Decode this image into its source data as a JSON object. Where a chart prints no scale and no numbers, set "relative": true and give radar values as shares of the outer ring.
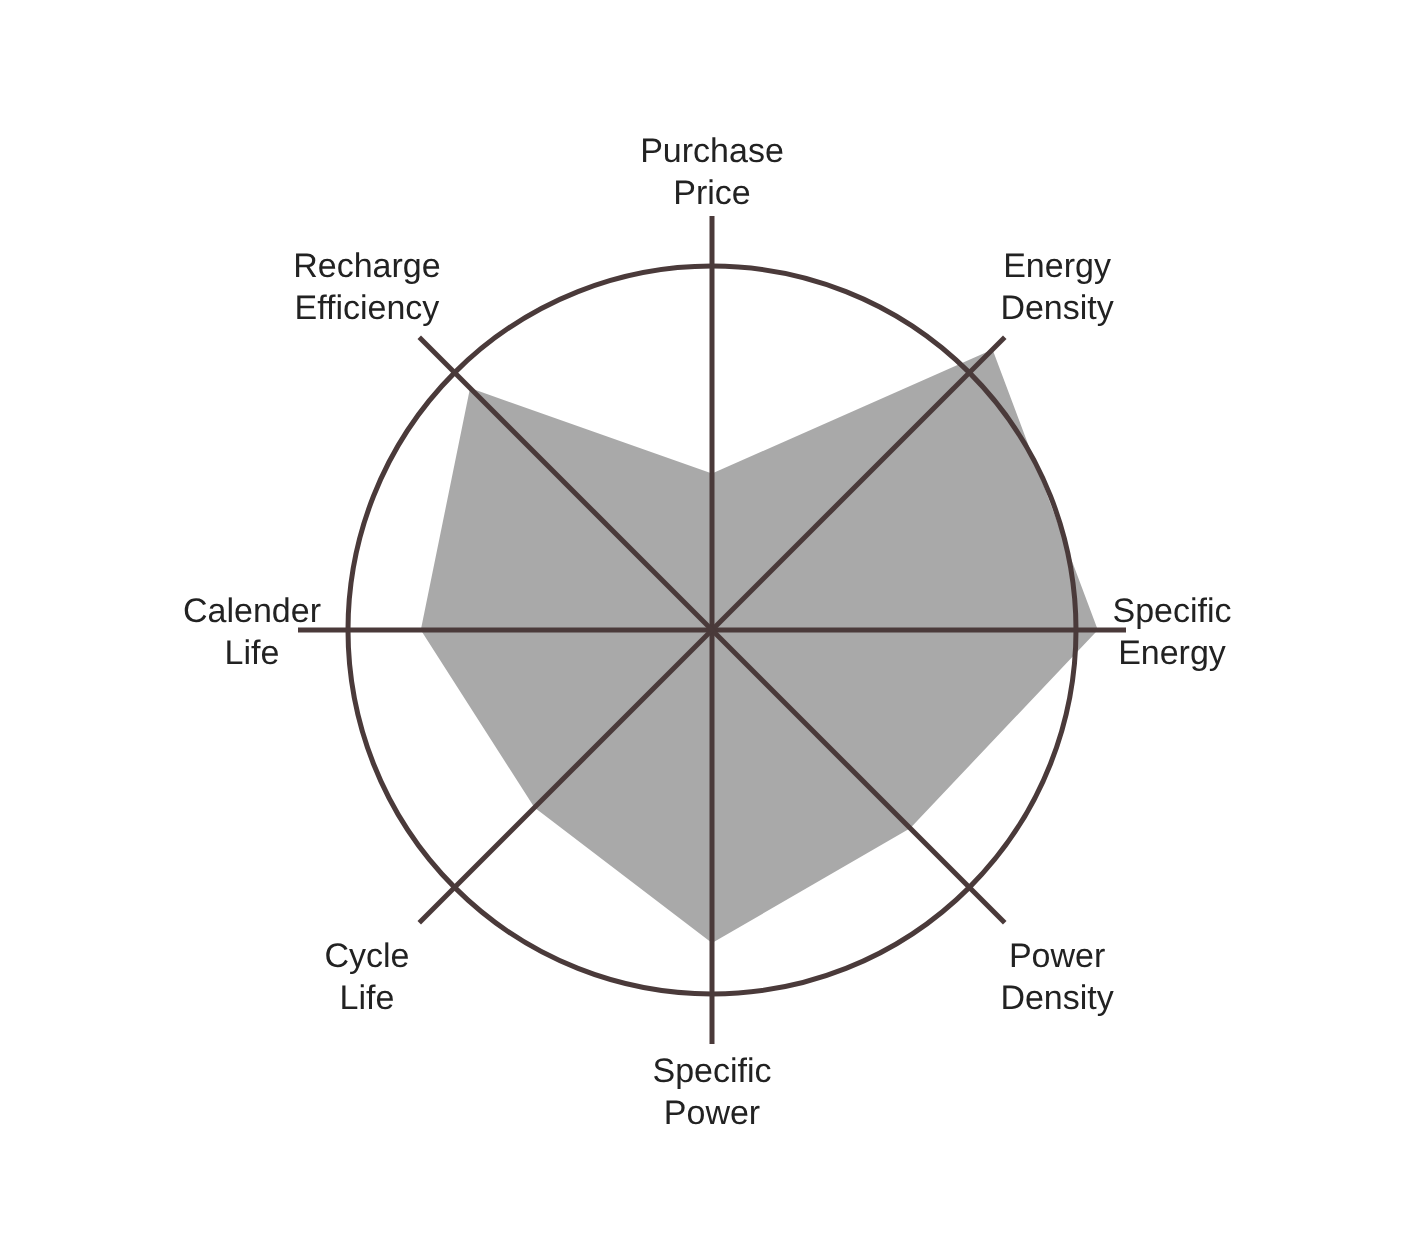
{
  "chart_data": {
    "type": "radar",
    "relative": true,
    "categories": [
      "Purchase\nPrice",
      "Energy\nDensity",
      "Specific\nEnergy",
      "Power\nDensity",
      "Specific\nPower",
      "Cycle\nLife",
      "Calender\nLife",
      "Recharge\nEfficiency"
    ],
    "series": [
      {
        "color": "#9a9a9a",
        "values": [
          0.43,
          1.09,
          1.06,
          0.77,
          0.86,
          0.69,
          0.8,
          0.94
        ]
      }
    ]
  }
}
